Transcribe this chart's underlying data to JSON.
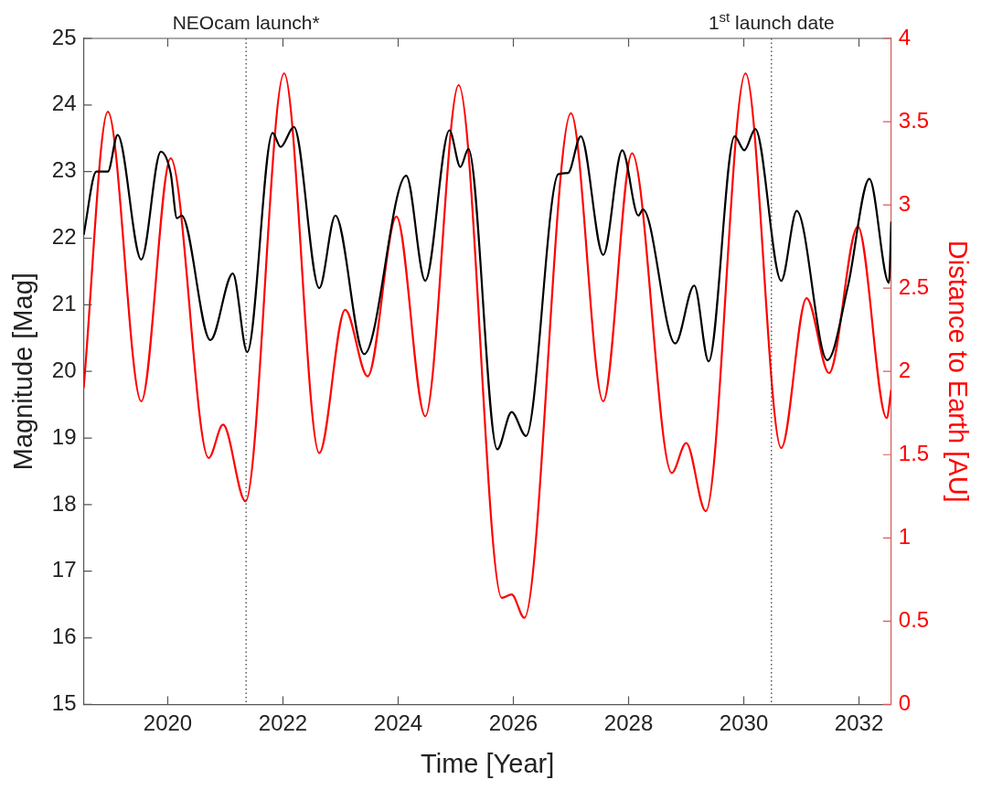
{
  "chart_data": {
    "type": "line",
    "xlabel": "Time [Year]",
    "ylabel": "Magnitude [Mag]",
    "y2label": "Distance to Earth [AU]",
    "xlim": [
      2018.54,
      2032.56
    ],
    "xticks": [
      2020,
      2022,
      2024,
      2026,
      2028,
      2030,
      2032
    ],
    "ylim": [
      15,
      25
    ],
    "yticks": [
      15,
      16,
      17,
      18,
      19,
      20,
      21,
      22,
      23,
      24,
      25
    ],
    "y2lim": [
      0,
      4
    ],
    "y2ticks": [
      0,
      0.5,
      1,
      1.5,
      2,
      2.5,
      3,
      3.5,
      4
    ],
    "grid": false,
    "legend": false,
    "marker": "none",
    "line_style": "solid",
    "ref_lines": [
      {
        "axis": "x",
        "value": 2021.36,
        "label": "NEOcam launch*",
        "color": "#333333",
        "line_style": "dotted"
      },
      {
        "axis": "x",
        "value": 2030.48,
        "label": "1$^{st}$ launch date",
        "color": "#333333",
        "line_style": "dotted"
      }
    ],
    "series": [
      {
        "color": "#000000",
        "x": [
          2018.54,
          2018.76,
          2018.96,
          2019.13,
          2019.54,
          2019.88,
          2020.05,
          2020.16,
          2020.24,
          2020.74,
          2021.13,
          2021.38,
          2021.82,
          2021.96,
          2022.19,
          2022.63,
          2022.91,
          2023.41,
          2024.14,
          2024.47,
          2024.89,
          2025.08,
          2025.22,
          2025.72,
          2025.97,
          2026.22,
          2026.78,
          2026.95,
          2027.17,
          2027.56,
          2027.89,
          2028.17,
          2028.25,
          2028.81,
          2029.14,
          2029.39,
          2029.84,
          2030.01,
          2030.2,
          2030.65,
          2030.92,
          2031.45,
          2031.81,
          2032.18,
          2032.52,
          2032.56
        ],
        "values": [
          22.05,
          23.0,
          23.0,
          23.55,
          21.68,
          23.3,
          22.98,
          22.3,
          22.34,
          20.47,
          21.47,
          20.29,
          23.58,
          23.37,
          23.67,
          21.25,
          22.34,
          20.26,
          22.94,
          21.36,
          23.62,
          23.07,
          23.34,
          18.83,
          19.39,
          19.03,
          22.96,
          22.98,
          23.53,
          21.75,
          23.32,
          22.34,
          22.43,
          20.42,
          21.29,
          20.15,
          23.53,
          23.32,
          23.64,
          21.36,
          22.41,
          20.17,
          21.29,
          22.89,
          21.33,
          22.25
        ]
      },
      {
        "color": "#ff0000",
        "axis": "y2",
        "x": [
          2018.54,
          2018.96,
          2019.54,
          2020.05,
          2020.71,
          2020.96,
          2021.35,
          2022.02,
          2022.63,
          2023.08,
          2023.47,
          2023.97,
          2024.47,
          2025.05,
          2025.8,
          2025.97,
          2026.19,
          2027.0,
          2027.56,
          2028.06,
          2028.75,
          2029.0,
          2029.34,
          2030.03,
          2030.65,
          2031.09,
          2031.48,
          2031.98,
          2032.48,
          2032.56
        ],
        "values": [
          1.9,
          3.56,
          1.82,
          3.28,
          1.48,
          1.68,
          1.22,
          3.79,
          1.51,
          2.37,
          1.97,
          2.93,
          1.73,
          3.72,
          0.64,
          0.66,
          0.52,
          3.55,
          1.82,
          3.31,
          1.39,
          1.57,
          1.16,
          3.79,
          1.54,
          2.44,
          1.99,
          2.87,
          1.72,
          1.89
        ]
      }
    ]
  }
}
